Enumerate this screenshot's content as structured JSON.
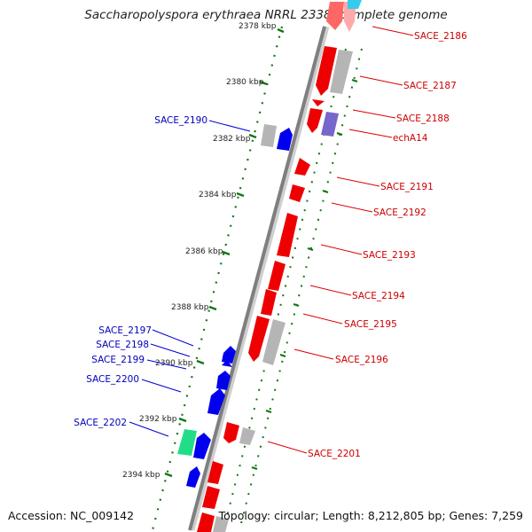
{
  "title": "Saccharopolyspora erythraea NRRL 2338, complete genome",
  "footer": {
    "accession": "Accession: NC_009142",
    "topology": "Topology: circular; Length: 8,212,805 bp; Genes: 7,259"
  },
  "colors": {
    "backbone": "#7f7f7f",
    "forward": "#0000ee",
    "reverse": "#ee0000",
    "pseudo": "#b3b3b3",
    "rna": "#22dd88",
    "purple": "#7766cc",
    "cyan": "#33ccee",
    "tick": "#117711",
    "label_fwd": "#0000bb",
    "label_rev": "#cc0000"
  },
  "tick_labels": [
    {
      "id": "2378",
      "text": "2378 kbp"
    },
    {
      "id": "2380",
      "text": "2380 kbp"
    },
    {
      "id": "2382",
      "text": "2382 kbp"
    },
    {
      "id": "2384",
      "text": "2384 kbp"
    },
    {
      "id": "2386",
      "text": "2386 kbp"
    },
    {
      "id": "2388",
      "text": "2388 kbp"
    },
    {
      "id": "2390",
      "text": "2390 kbp"
    },
    {
      "id": "2392",
      "text": "2392 kbp"
    },
    {
      "id": "2394",
      "text": "2394 kbp"
    }
  ],
  "gene_labels": [
    {
      "id": "sace2186",
      "text": "SACE_2186",
      "strand": "reverse"
    },
    {
      "id": "sace2187",
      "text": "SACE_2187",
      "strand": "reverse"
    },
    {
      "id": "sace2188",
      "text": "SACE_2188",
      "strand": "reverse"
    },
    {
      "id": "echa14",
      "text": "echA14",
      "strand": "reverse"
    },
    {
      "id": "sace2190",
      "text": "SACE_2190",
      "strand": "forward"
    },
    {
      "id": "sace2191",
      "text": "SACE_2191",
      "strand": "reverse"
    },
    {
      "id": "sace2192",
      "text": "SACE_2192",
      "strand": "reverse"
    },
    {
      "id": "sace2193",
      "text": "SACE_2193",
      "strand": "reverse"
    },
    {
      "id": "sace2194",
      "text": "SACE_2194",
      "strand": "reverse"
    },
    {
      "id": "sace2195",
      "text": "SACE_2195",
      "strand": "reverse"
    },
    {
      "id": "sace2196",
      "text": "SACE_2196",
      "strand": "reverse"
    },
    {
      "id": "sace2197",
      "text": "SACE_2197",
      "strand": "forward"
    },
    {
      "id": "sace2198",
      "text": "SACE_2198",
      "strand": "forward"
    },
    {
      "id": "sace2199",
      "text": "SACE_2199",
      "strand": "forward"
    },
    {
      "id": "sace2200",
      "text": "SACE_2200",
      "strand": "forward"
    },
    {
      "id": "sace2201",
      "text": "SACE_2201",
      "strand": "reverse"
    },
    {
      "id": "sace2202",
      "text": "SACE_2202",
      "strand": "forward"
    }
  ]
}
